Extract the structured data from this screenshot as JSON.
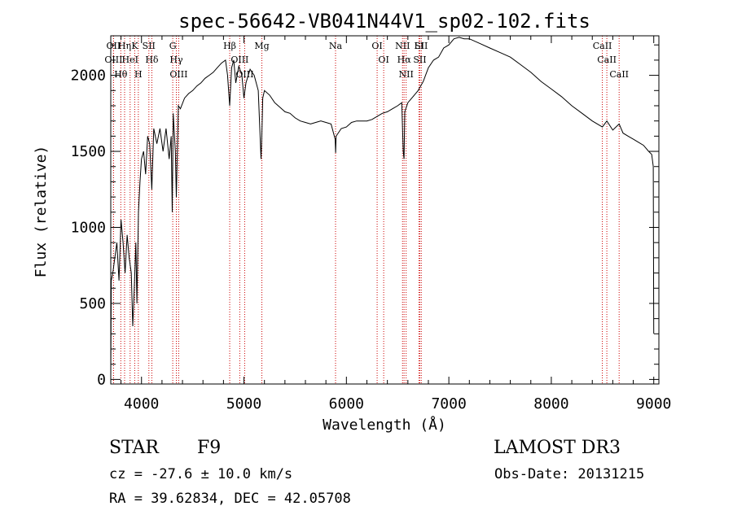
{
  "chart_data": {
    "type": "line",
    "title": "spec-56642-VB041N44V1_sp02-102.fits",
    "xlabel": "Wavelength (Å)",
    "ylabel": "Flux (relative)",
    "xlim": [
      3700,
      9050
    ],
    "ylim": [
      -30,
      2260
    ],
    "x_ticks": [
      4000,
      5000,
      6000,
      7000,
      8000,
      9000
    ],
    "y_ticks": [
      0,
      500,
      1000,
      1500,
      2000
    ],
    "grid": false,
    "line_color": "#000000",
    "marker_color": "#cc0000",
    "series": [
      {
        "x": [
          3700,
          3705,
          3720,
          3740,
          3760,
          3780,
          3800,
          3820,
          3840,
          3860,
          3880,
          3900,
          3915,
          3930,
          3945,
          3955,
          3970,
          3985,
          4000,
          4020,
          4040,
          4060,
          4080,
          4101,
          4120,
          4150,
          4180,
          4210,
          4240,
          4270,
          4290,
          4300,
          4310,
          4330,
          4340,
          4360,
          4380,
          4420,
          4460,
          4500,
          4540,
          4580,
          4620,
          4660,
          4700,
          4740,
          4780,
          4820,
          4840,
          4861,
          4880,
          4900,
          4920,
          4950,
          4980,
          5000,
          5020,
          5060,
          5100,
          5140,
          5167,
          5175,
          5183,
          5200,
          5250,
          5300,
          5350,
          5400,
          5450,
          5500,
          5550,
          5600,
          5650,
          5700,
          5750,
          5800,
          5850,
          5890,
          5895,
          5900,
          5950,
          6000,
          6050,
          6100,
          6150,
          6200,
          6250,
          6300,
          6350,
          6400,
          6450,
          6500,
          6540,
          6555,
          6563,
          6570,
          6600,
          6650,
          6700,
          6750,
          6800,
          6850,
          6900,
          6950,
          7000,
          7050,
          7100,
          7150,
          7200,
          7300,
          7400,
          7500,
          7600,
          7700,
          7800,
          7900,
          8000,
          8100,
          8200,
          8300,
          8400,
          8498,
          8542,
          8600,
          8662,
          8700,
          8750,
          8800,
          8850,
          8900,
          8950,
          8980,
          8995,
          9000
        ],
        "y": [
          0,
          650,
          700,
          800,
          900,
          650,
          1050,
          900,
          700,
          950,
          800,
          700,
          350,
          600,
          900,
          500,
          1100,
          1300,
          1450,
          1500,
          1350,
          1600,
          1550,
          1250,
          1650,
          1550,
          1650,
          1500,
          1650,
          1450,
          1600,
          1100,
          1750,
          1500,
          1200,
          1800,
          1780,
          1850,
          1880,
          1900,
          1930,
          1950,
          1980,
          2000,
          2020,
          2050,
          2080,
          2100,
          2000,
          1800,
          2050,
          2100,
          1950,
          2060,
          2000,
          1850,
          1950,
          2040,
          2000,
          1900,
          1450,
          1600,
          1850,
          1900,
          1870,
          1820,
          1790,
          1760,
          1750,
          1720,
          1700,
          1690,
          1680,
          1690,
          1700,
          1690,
          1680,
          1580,
          1490,
          1600,
          1650,
          1660,
          1690,
          1700,
          1700,
          1700,
          1710,
          1730,
          1750,
          1760,
          1780,
          1800,
          1820,
          1500,
          1450,
          1760,
          1820,
          1860,
          1900,
          1960,
          2050,
          2100,
          2120,
          2180,
          2200,
          2240,
          2250,
          2240,
          2240,
          2210,
          2180,
          2150,
          2120,
          2070,
          2020,
          1960,
          1910,
          1860,
          1800,
          1750,
          1700,
          1660,
          1700,
          1640,
          1680,
          1620,
          1600,
          1580,
          1560,
          1540,
          1500,
          1480,
          1400,
          300
        ]
      }
    ],
    "lines": [
      {
        "label": "Hθ",
        "x": 3798
      },
      {
        "label": "OII",
        "x": 3727
      },
      {
        "label": "OIII",
        "x": 3727
      },
      {
        "label": "Hη",
        "x": 3835
      },
      {
        "label": "HeI",
        "x": 3889
      },
      {
        "label": "K",
        "x": 3934
      },
      {
        "label": "H",
        "x": 3969
      },
      {
        "label": "Hδ",
        "x": 4101
      },
      {
        "label": "SII",
        "x": 4072
      },
      {
        "label": "OIII",
        "x": 4363
      },
      {
        "label": "Hγ",
        "x": 4340
      },
      {
        "label": "G",
        "x": 4305
      },
      {
        "label": "Hβ",
        "x": 4861
      },
      {
        "label": "OIII",
        "x": 4959
      },
      {
        "label": "OIII",
        "x": 5007
      },
      {
        "label": "Mg",
        "x": 5175
      },
      {
        "label": "Na",
        "x": 5894
      },
      {
        "label": "OI",
        "x": 6300
      },
      {
        "label": "OI",
        "x": 6364
      },
      {
        "label": "NII",
        "x": 6548
      },
      {
        "label": "Hα",
        "x": 6563
      },
      {
        "label": "NII",
        "x": 6583
      },
      {
        "label": "SII",
        "x": 6717
      },
      {
        "label": "LI",
        "x": 6708
      },
      {
        "label": "SII",
        "x": 6731
      },
      {
        "label": "CaII",
        "x": 8498
      },
      {
        "label": "CaII",
        "x": 8542
      },
      {
        "label": "CaII",
        "x": 8662
      }
    ]
  },
  "info": {
    "class_label": "STAR",
    "subclass_label": "F9",
    "survey": "LAMOST DR3",
    "redshift_line": "cz = -27.6 ± 10.0 km/s",
    "obs_date": "Obs-Date: 20131215",
    "coords": "RA =  39.62834, DEC =  42.05708"
  }
}
